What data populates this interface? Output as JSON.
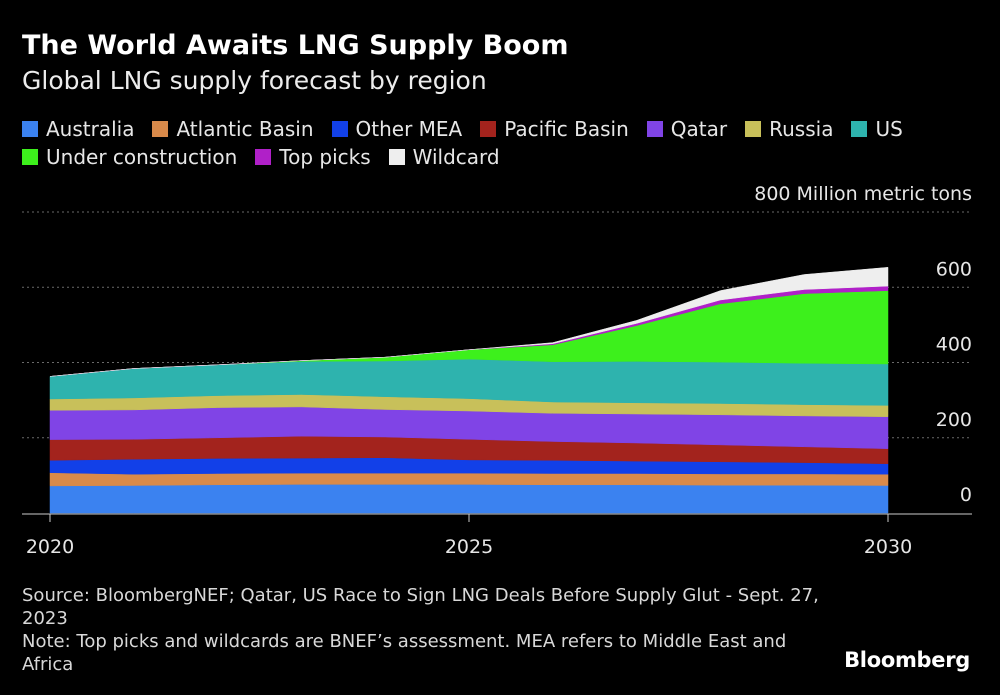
{
  "chart_data": {
    "type": "area",
    "stacked": true,
    "title": "The World Awaits LNG Supply Boom",
    "subtitle": "Global LNG supply forecast by region",
    "unit_label": "Million metric tons",
    "x": [
      2020,
      2021,
      2022,
      2023,
      2024,
      2025,
      2026,
      2027,
      2028,
      2029,
      2030
    ],
    "x_ticks": [
      "2020",
      "2025",
      "2030"
    ],
    "x_tick_values": [
      2020,
      2025,
      2030
    ],
    "y_ticks": [
      "0",
      "200",
      "400",
      "600",
      "800"
    ],
    "y_tick_values": [
      0,
      200,
      400,
      600,
      800
    ],
    "ylim": [
      0,
      800
    ],
    "series": [
      {
        "name": "Australia",
        "color": "#3b82f0",
        "values": [
          72,
          73,
          75,
          76,
          76,
          76,
          75,
          75,
          74,
          74,
          73
        ]
      },
      {
        "name": "Atlantic Basin",
        "color": "#d98a4a",
        "values": [
          35,
          30,
          30,
          30,
          30,
          30,
          30,
          30,
          30,
          30,
          30
        ]
      },
      {
        "name": "Other MEA",
        "color": "#1240e8",
        "values": [
          33,
          40,
          40,
          40,
          41,
          35,
          35,
          33,
          32,
          30,
          28
        ]
      },
      {
        "name": "Pacific Basin",
        "color": "#a3231d",
        "values": [
          55,
          53,
          55,
          58,
          55,
          55,
          50,
          48,
          45,
          42,
          40
        ]
      },
      {
        "name": "Qatar",
        "color": "#8044e6",
        "values": [
          78,
          78,
          80,
          78,
          73,
          75,
          75,
          77,
          80,
          82,
          85
        ]
      },
      {
        "name": "Russia",
        "color": "#c8c05a",
        "values": [
          30,
          32,
          32,
          33,
          34,
          33,
          30,
          30,
          30,
          30,
          30
        ]
      },
      {
        "name": "US",
        "color": "#2eb3ae",
        "values": [
          60,
          78,
          82,
          88,
          95,
          105,
          107,
          110,
          110,
          110,
          110
        ]
      },
      {
        "name": "Under construction",
        "color": "#3df01c",
        "values": [
          0,
          0,
          0,
          2,
          10,
          25,
          45,
          95,
          155,
          185,
          195
        ]
      },
      {
        "name": "Top picks",
        "color": "#b020c8",
        "values": [
          0,
          0,
          0,
          0,
          0,
          0,
          3,
          6,
          10,
          11,
          12
        ]
      },
      {
        "name": "Wildcard",
        "color": "#eeeeee",
        "values": [
          0,
          0,
          0,
          0,
          0,
          0,
          3,
          8,
          25,
          40,
          50
        ]
      }
    ]
  },
  "footer": {
    "source": "Source: BloombergNEF; Qatar, US Race to Sign LNG Deals Before Supply Glut - Sept. 27, 2023",
    "note": "Note: Top picks and wildcards are BNEF’s assessment. MEA refers to Middle East and Africa",
    "brand": "Bloomberg"
  }
}
